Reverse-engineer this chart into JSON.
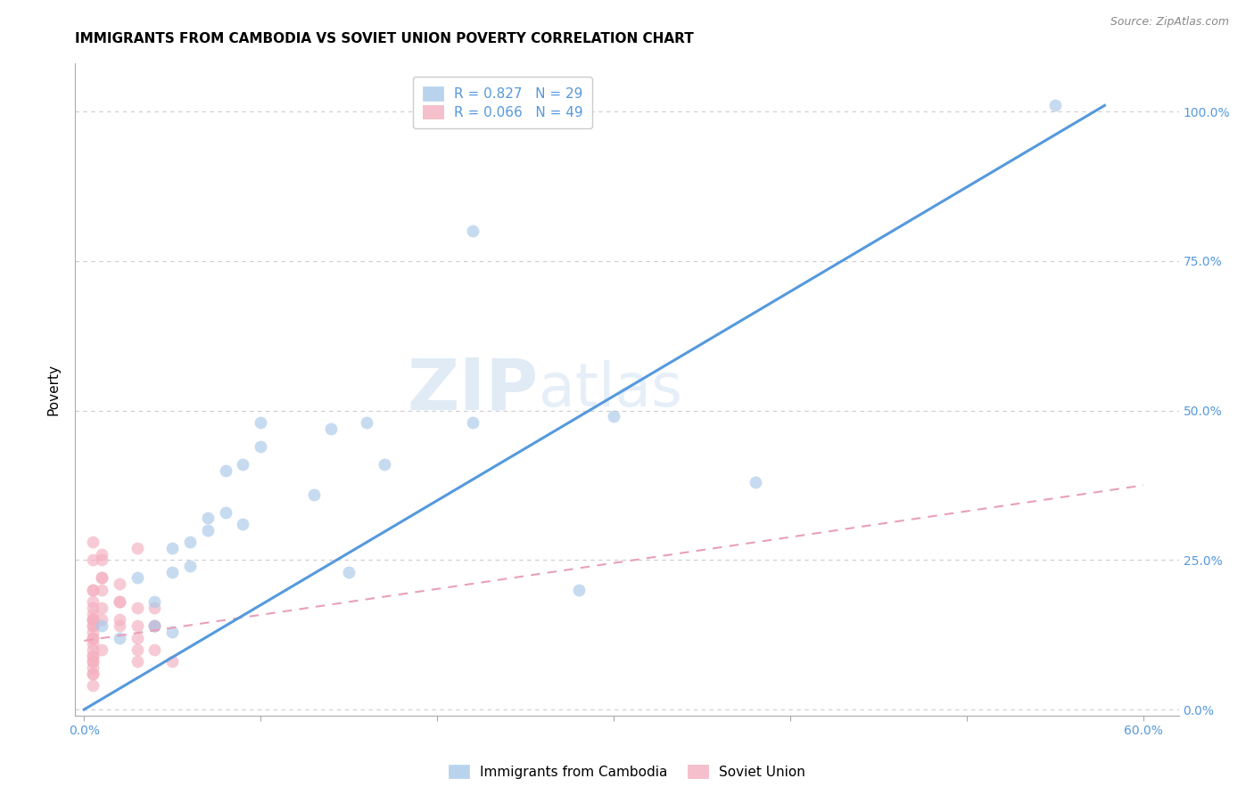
{
  "title": "IMMIGRANTS FROM CAMBODIA VS SOVIET UNION POVERTY CORRELATION CHART",
  "source": "Source: ZipAtlas.com",
  "xlabel_ticks_vals": [
    0.0,
    0.1,
    0.2,
    0.3,
    0.4,
    0.5,
    0.6
  ],
  "xlabel_ticks_labels": [
    "0.0%",
    "",
    "",
    "",
    "",
    "",
    "60.0%"
  ],
  "ylabel_ticks_vals": [
    0.0,
    0.25,
    0.5,
    0.75,
    1.0
  ],
  "ylabel_ticks_labels": [
    "0.0%",
    "25.0%",
    "50.0%",
    "75.0%",
    "100.0%"
  ],
  "ylabel_label": "Poverty",
  "xlim": [
    -0.005,
    0.62
  ],
  "ylim": [
    -0.01,
    1.08
  ],
  "watermark_zip": "ZIP",
  "watermark_atlas": "atlas",
  "legend_entries": [
    {
      "label": "R = 0.827   N = 29",
      "color": "#a8c8f0"
    },
    {
      "label": "R = 0.066   N = 49",
      "color": "#f4b8c8"
    }
  ],
  "cambodia_scatter_x": [
    0.02,
    0.03,
    0.04,
    0.05,
    0.05,
    0.06,
    0.07,
    0.07,
    0.08,
    0.08,
    0.09,
    0.09,
    0.1,
    0.1,
    0.13,
    0.14,
    0.15,
    0.16,
    0.17,
    0.22,
    0.22,
    0.28,
    0.3,
    0.55,
    0.01,
    0.04,
    0.05,
    0.06,
    0.38
  ],
  "cambodia_scatter_y": [
    0.12,
    0.22,
    0.14,
    0.13,
    0.27,
    0.24,
    0.3,
    0.32,
    0.33,
    0.4,
    0.31,
    0.41,
    0.44,
    0.48,
    0.36,
    0.47,
    0.23,
    0.48,
    0.41,
    0.48,
    0.8,
    0.2,
    0.49,
    1.01,
    0.14,
    0.18,
    0.23,
    0.28,
    0.38
  ],
  "soviet_scatter_x": [
    0.005,
    0.005,
    0.005,
    0.005,
    0.005,
    0.005,
    0.005,
    0.005,
    0.005,
    0.005,
    0.005,
    0.005,
    0.005,
    0.005,
    0.005,
    0.005,
    0.005,
    0.005,
    0.005,
    0.005,
    0.005,
    0.005,
    0.005,
    0.005,
    0.01,
    0.01,
    0.01,
    0.01,
    0.01,
    0.01,
    0.01,
    0.01,
    0.02,
    0.02,
    0.02,
    0.02,
    0.02,
    0.03,
    0.03,
    0.03,
    0.03,
    0.03,
    0.03,
    0.04,
    0.04,
    0.04,
    0.04,
    0.05,
    0.005
  ],
  "soviet_scatter_y": [
    0.04,
    0.06,
    0.06,
    0.07,
    0.08,
    0.08,
    0.09,
    0.09,
    0.1,
    0.11,
    0.12,
    0.12,
    0.13,
    0.14,
    0.14,
    0.15,
    0.15,
    0.15,
    0.16,
    0.17,
    0.18,
    0.2,
    0.2,
    0.25,
    0.1,
    0.15,
    0.17,
    0.2,
    0.22,
    0.22,
    0.25,
    0.26,
    0.14,
    0.15,
    0.18,
    0.18,
    0.21,
    0.08,
    0.1,
    0.12,
    0.14,
    0.17,
    0.27,
    0.1,
    0.14,
    0.14,
    0.17,
    0.08,
    0.28
  ],
  "cambodia_line_x": [
    0.0,
    0.578
  ],
  "cambodia_line_y": [
    0.0,
    1.01
  ],
  "soviet_line_x": [
    0.0,
    0.6
  ],
  "soviet_line_y": [
    0.115,
    0.375
  ],
  "cambodia_color": "#a8c8e8",
  "soviet_color": "#f4b0c0",
  "cambodia_line_color": "#5599dd",
  "soviet_line_color": "#e8a0b8",
  "background_color": "#ffffff",
  "grid_color": "#cccccc",
  "title_fontsize": 11,
  "axis_color": "#5599dd",
  "marker_size": 100
}
